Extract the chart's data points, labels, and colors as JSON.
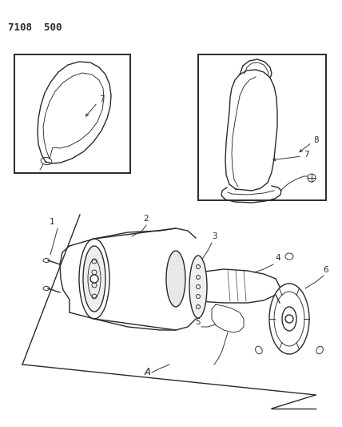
{
  "title": "7108  500",
  "bg_color": "#ffffff",
  "line_color": "#2a2a2a",
  "fig_width": 4.28,
  "fig_height": 5.33,
  "dpi": 100,
  "label_fontsize": 7.5
}
